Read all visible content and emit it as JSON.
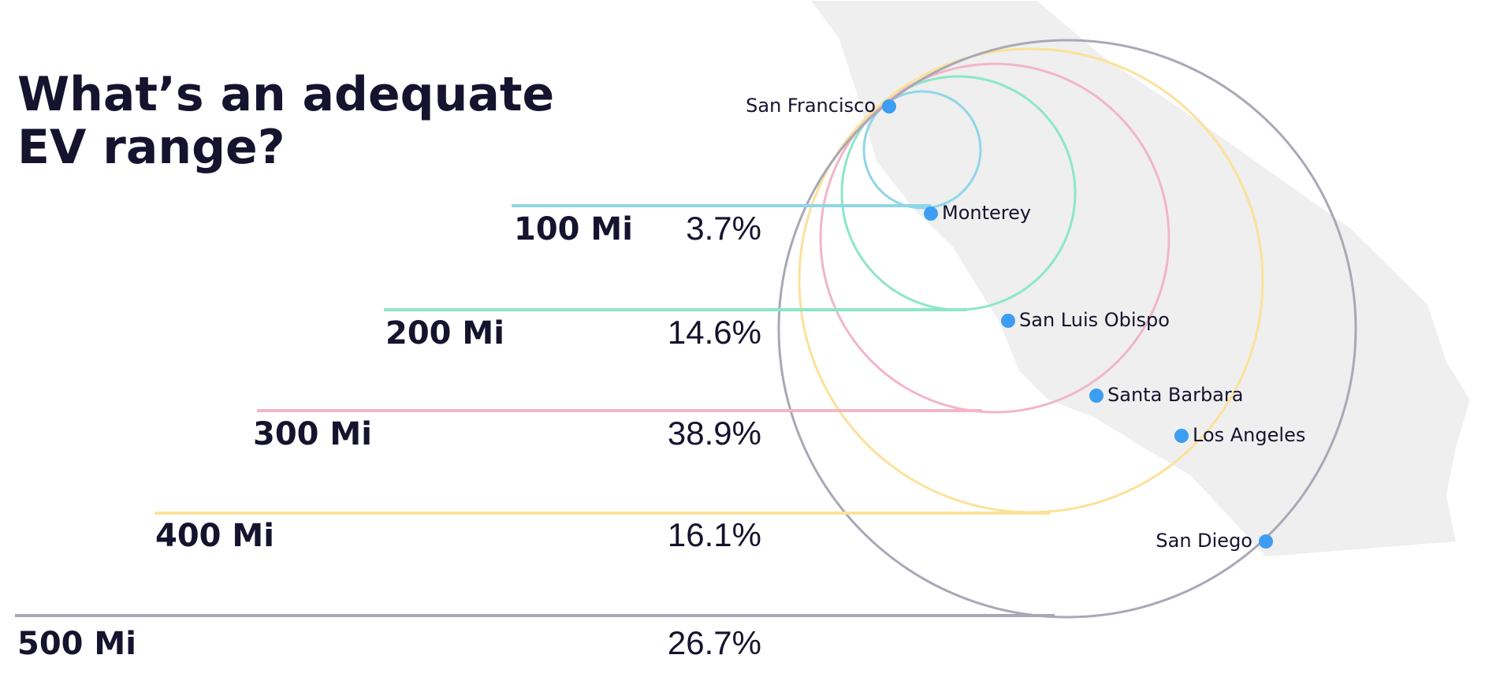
{
  "title_lines": [
    "What’s an adequate",
    "EV range?"
  ],
  "ranges": [
    {
      "label": "100 Mi",
      "share": "3.7%",
      "color": "#8fd6e8"
    },
    {
      "label": "200 Mi",
      "share": "14.6%",
      "color": "#8de6c9"
    },
    {
      "label": "300 Mi",
      "share": "38.9%",
      "color": "#f2b6c6"
    },
    {
      "label": "400 Mi",
      "share": "16.1%",
      "color": "#fbe19a"
    },
    {
      "label": "500 Mi",
      "share": "26.7%",
      "color": "#a9a8b6"
    }
  ],
  "cities": [
    "San Francisco",
    "Monterey",
    "San Luis Obispo",
    "Santa Barbara",
    "Los Angeles",
    "San Diego"
  ],
  "dot_color": "#3d9df2"
}
